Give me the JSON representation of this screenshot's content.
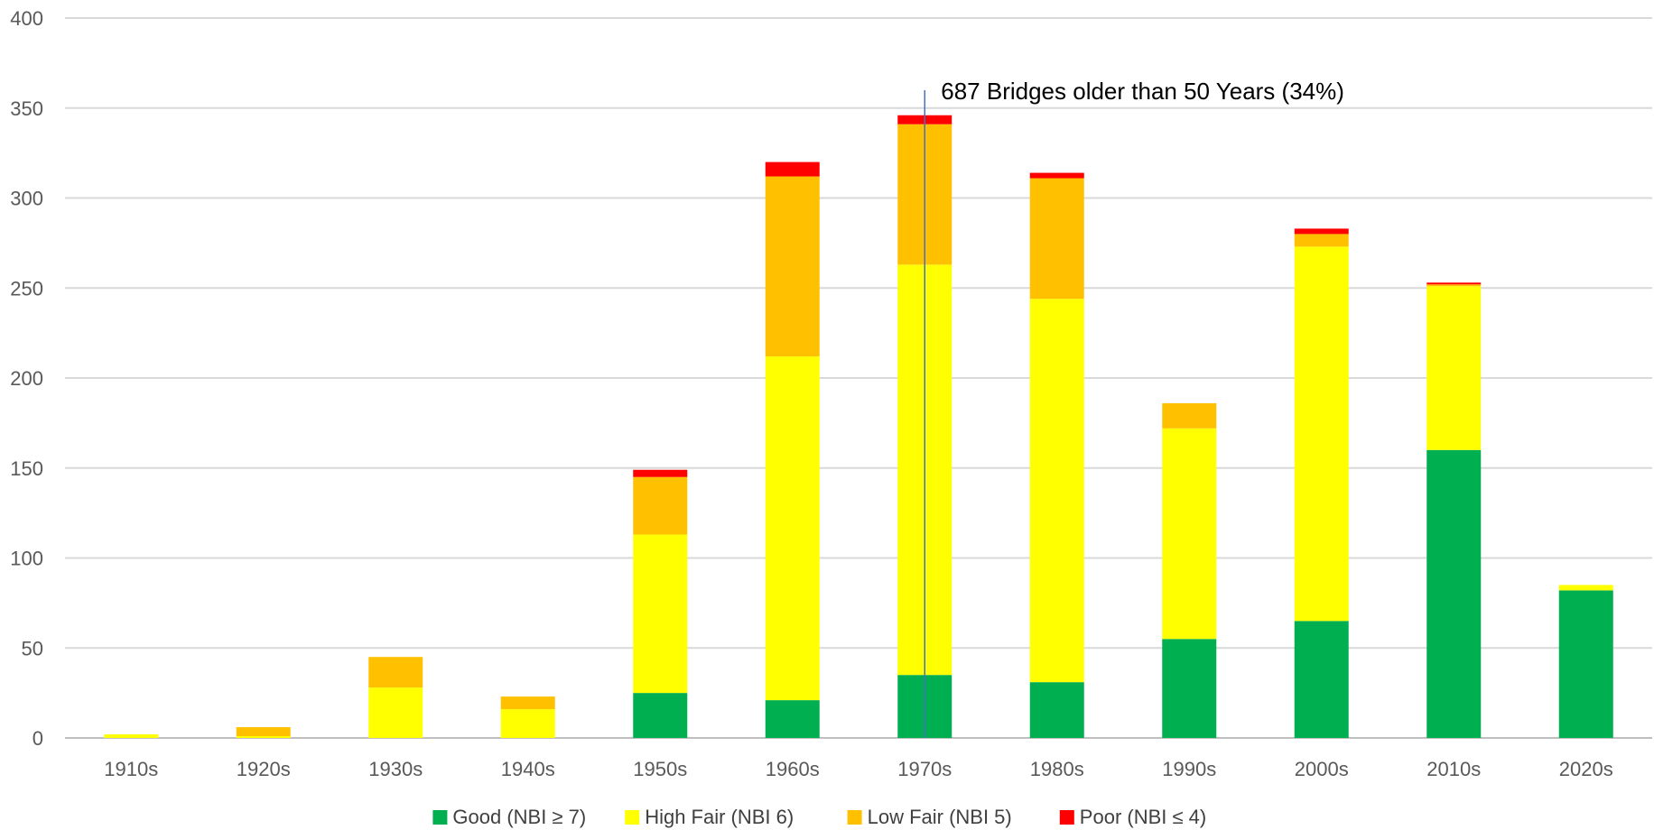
{
  "chart_data": {
    "type": "bar",
    "stacked": true,
    "categories": [
      "1910s",
      "1920s",
      "1930s",
      "1940s",
      "1950s",
      "1960s",
      "1970s",
      "1980s",
      "1990s",
      "2000s",
      "2010s",
      "2020s"
    ],
    "series": [
      {
        "name": "Good (NBI ≥ 7)",
        "color": "#00b050",
        "values": [
          0,
          0,
          0,
          0,
          25,
          21,
          35,
          31,
          55,
          65,
          160,
          82
        ]
      },
      {
        "name": "High Fair (NBI 6)",
        "color": "#ffff00",
        "values": [
          2,
          1,
          28,
          16,
          88,
          191,
          228,
          213,
          117,
          208,
          91,
          3
        ]
      },
      {
        "name": "Low Fair (NBI 5)",
        "color": "#ffc000",
        "values": [
          0,
          5,
          17,
          7,
          32,
          100,
          78,
          67,
          14,
          7,
          1,
          0
        ]
      },
      {
        "name": "Poor (NBI ≤ 4)",
        "color": "#ff0000",
        "values": [
          0,
          0,
          0,
          0,
          4,
          8,
          5,
          3,
          0,
          3,
          1,
          0
        ]
      }
    ],
    "ylim": [
      0,
      400
    ],
    "yticks": [
      0,
      50,
      100,
      150,
      200,
      250,
      300,
      350,
      400
    ],
    "grid": true,
    "legend_position": "bottom",
    "annotation": {
      "text": "687 Bridges older than 50 Years (34%)",
      "at_category": "1970s",
      "line_color": "#4472c4"
    }
  }
}
